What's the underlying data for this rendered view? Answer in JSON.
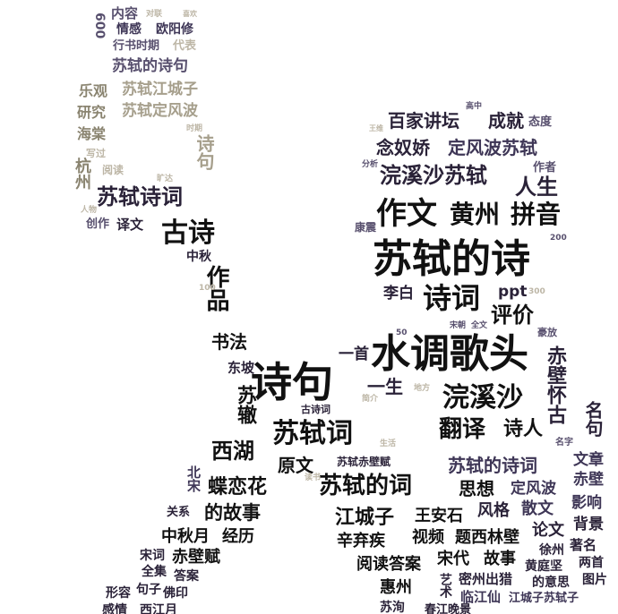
{
  "words": {
    "neirong": "内容",
    "duilian": "对联",
    "xihuan": "喜欢",
    "qinggan": "情感",
    "ouyangxiu": "欧阳修",
    "n600": "600",
    "xingshushiqi": "行书时期",
    "daibiao": "代表",
    "sushidedeshiju": "苏轼的诗句",
    "leguan": "乐观",
    "sushijiangchengzi": "苏轼江城子",
    "yanjiu": "研究",
    "sushidingfengbo": "苏轼定风波",
    "haitang": "海棠",
    "xiezuo": "写过",
    "hangzhou": "杭州",
    "yuedu": "阅读",
    "kuangda": "旷达",
    "sushishici": "苏轼诗词",
    "renwu": "人物",
    "chuangzuo": "创作",
    "yiwen": "译文",
    "gushi": "古诗",
    "zhongqiu": "中秋",
    "zuopin": "作品",
    "shufa": "书法",
    "dongpo": "东坡",
    "shiju": "诗句",
    "suzhe": "苏辙",
    "xihu": "西湖",
    "beisong": "北宋",
    "dielianhua": "蝶恋花",
    "guanxi": "关系",
    "degushi": "的故事",
    "zhongqiuyue": "中秋月",
    "jingli": "经历",
    "songci": "宋词",
    "chibifu": "赤壁赋",
    "quanji": "全集",
    "daan": "答案",
    "juzi": "句子",
    "foyin": "佛印",
    "xingrong": "形容",
    "ganqing": "感情",
    "xijiangyue": "西江月",
    "gaozhong": "高中",
    "baijiajiangtan": "百家讲坛",
    "chengjiu": "成就",
    "taidu": "态度",
    "niannujiao": "念奴娇",
    "dingfengbosushi": "定风波苏轼",
    "huanxishasushi": "浣溪沙苏轼",
    "zuozhe": "作者",
    "rensheng": "人生",
    "zuowen": "作文",
    "huangzhou": "黄州",
    "pinyin": "拼音",
    "sushideshi": "苏轼的诗",
    "libai": "李白",
    "shici": "诗词",
    "ppt": "ppt",
    "pingjia": "评价",
    "shuidiaogetou": "水调歌头",
    "yishou": "一首",
    "yisheng": "一生",
    "chibihuaigu": "赤壁怀古",
    "huanxisha": "浣溪沙",
    "fanyi": "翻译",
    "shiren": "诗人",
    "gushici": "古诗词",
    "sushici": "苏轼词",
    "yuanwen": "原文",
    "sushichibifu": "苏轼赤壁赋",
    "sushideci": "苏轼的词",
    "jiangchengzi": "江城子",
    "wanganshi": "王安石",
    "xinqiji": "辛弃疾",
    "shipin": "视频",
    "tixilinbi": "题西林壁",
    "fengge": "风格",
    "sanwen": "散文",
    "yuedudaan": "阅读答案",
    "songdai": "宋代",
    "gushi2": "故事",
    "lunwen": "论文",
    "huizhou": "惠州",
    "mizhouchulie": "密州出猎",
    "huangtingjian": "黄庭坚",
    "deyisi": "的意思",
    "linjiangxian": "临江仙",
    "sushideshiju2": "苏轼的诗词",
    "dingfengbo": "定风波",
    "sixiang": "思想",
    "wenzhang": "文章",
    "chibi": "赤壁",
    "yingxiang": "影响",
    "beijing": "背景",
    "mingju": "名句",
    "zhuming": "著名",
    "liangshou": "两首",
    "tupian": "图片",
    "xuzhou": "徐州",
    "jiangchengzisushizi": "江城子苏轼子",
    "yishu": "艺术",
    "chunjiangwanjing": "春江晚景",
    "suxun": "苏洵",
    "mingzi": "名字",
    "haofang": "豪放",
    "n200": "200",
    "n300": "300",
    "n50": "50",
    "n100": "100",
    "wangwei": "王维",
    "fenxi": "分析",
    "kangzhen": "康震",
    "songchao": "宋朝",
    "quanwen": "全文",
    "jianjie": "简介",
    "difang": "地方",
    "shenghuo": "生活",
    "cipai": "词牌",
    "dushu": "读书",
    "zhuanji": "传记",
    "shiqi": "时期"
  }
}
